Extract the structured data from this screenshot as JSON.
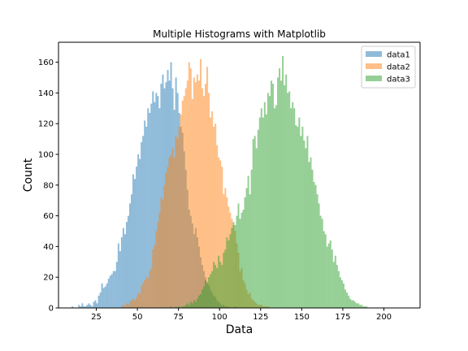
{
  "chart_data": {
    "type": "histogram",
    "title": "Multiple Histograms with Matplotlib",
    "xlabel": "Data",
    "ylabel": "Count",
    "xlim": [
      2,
      222
    ],
    "ylim": [
      0,
      173
    ],
    "xticks": [
      25,
      50,
      75,
      100,
      125,
      150,
      175,
      200
    ],
    "yticks": [
      0,
      20,
      40,
      60,
      80,
      100,
      120,
      140,
      160
    ],
    "grid": false,
    "legend_position": "top-right",
    "alpha": 0.5,
    "series": [
      {
        "name": "data1",
        "color": "#1f77b4",
        "bin_start": 10,
        "bin_width": 1,
        "counts": [
          1,
          0,
          0,
          0,
          2,
          1,
          3,
          1,
          1,
          2,
          3,
          2,
          1,
          4,
          5,
          3,
          8,
          10,
          16,
          13,
          14,
          16,
          19,
          21,
          22,
          24,
          24,
          30,
          42,
          37,
          46,
          52,
          48,
          56,
          60,
          68,
          74,
          87,
          84,
          92,
          100,
          97,
          108,
          112,
          122,
          118,
          130,
          127,
          133,
          141,
          134,
          140,
          138,
          130,
          146,
          152,
          143,
          147,
          155,
          148,
          160,
          143,
          129,
          150,
          140,
          127,
          118,
          114,
          102,
          90,
          77,
          64,
          60,
          55,
          48,
          52,
          46,
          40,
          33,
          28,
          24,
          20,
          17,
          15,
          12,
          10,
          8,
          7,
          5,
          4,
          3,
          2,
          2,
          1,
          1,
          1,
          0,
          0,
          0,
          1
        ]
      },
      {
        "name": "data2",
        "color": "#ff7f0e",
        "bin_start": 40,
        "bin_width": 1,
        "counts": [
          1,
          2,
          1,
          3,
          2,
          4,
          5,
          6,
          5,
          7,
          10,
          9,
          14,
          16,
          18,
          20,
          19,
          24,
          26,
          38,
          41,
          50,
          56,
          62,
          72,
          70,
          80,
          88,
          92,
          98,
          100,
          104,
          98,
          112,
          110,
          118,
          126,
          135,
          138,
          143,
          148,
          160,
          156,
          136,
          150,
          147,
          152,
          148,
          162,
          143,
          138,
          146,
          157,
          140,
          124,
          128,
          118,
          120,
          106,
          98,
          96,
          92,
          74,
          78,
          72,
          66,
          62,
          58,
          54,
          50,
          42,
          36,
          24,
          26,
          18,
          16,
          12,
          9,
          10,
          6,
          5,
          4,
          3,
          2,
          2,
          2,
          1,
          1,
          1,
          1
        ]
      },
      {
        "name": "data3",
        "color": "#2ca02c",
        "bin_start": 70,
        "bin_width": 1,
        "counts": [
          1,
          0,
          0,
          1,
          0,
          1,
          0,
          1,
          1,
          2,
          3,
          2,
          4,
          3,
          5,
          4,
          6,
          8,
          9,
          12,
          14,
          18,
          16,
          20,
          22,
          24,
          30,
          28,
          26,
          34,
          30,
          28,
          36,
          38,
          46,
          44,
          48,
          52,
          56,
          54,
          60,
          68,
          58,
          62,
          64,
          72,
          78,
          86,
          74,
          90,
          110,
          112,
          104,
          116,
          124,
          130,
          124,
          134,
          126,
          140,
          138,
          148,
          146,
          130,
          132,
          150,
          156,
          148,
          164,
          145,
          152,
          140,
          141,
          130,
          134,
          130,
          119,
          118,
          124,
          112,
          118,
          109,
          104,
          112,
          95,
          98,
          90,
          82,
          80,
          74,
          68,
          60,
          58,
          50,
          48,
          40,
          42,
          44,
          38,
          30,
          34,
          28,
          24,
          20,
          18,
          16,
          12,
          10,
          8,
          6,
          5,
          5,
          4,
          3,
          3,
          2,
          2,
          1,
          1,
          1
        ]
      }
    ]
  }
}
